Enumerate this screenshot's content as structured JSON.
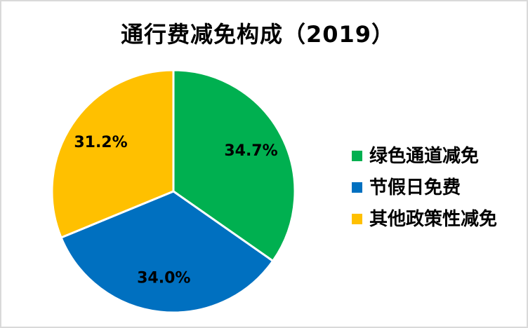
{
  "chart_data": {
    "type": "pie",
    "title": "通行费减免构成（2019）",
    "slices": [
      {
        "label": "绿色通道减免",
        "value": 34.7,
        "display": "34.7%",
        "color": "#00B050"
      },
      {
        "label": "节假日免费",
        "value": 34.0,
        "display": "34.0%",
        "color": "#0070C0"
      },
      {
        "label": "其他政策性减免",
        "value": 31.2,
        "display": "31.2%",
        "color": "#FFC000"
      }
    ],
    "start_angle_deg": 0,
    "direction": "clockwise",
    "legend_position": "right",
    "data_labels": "inside",
    "label_color": "#000000",
    "divider_color": "#FFFFFF",
    "canvas_border_color": "#D9D9D9"
  }
}
